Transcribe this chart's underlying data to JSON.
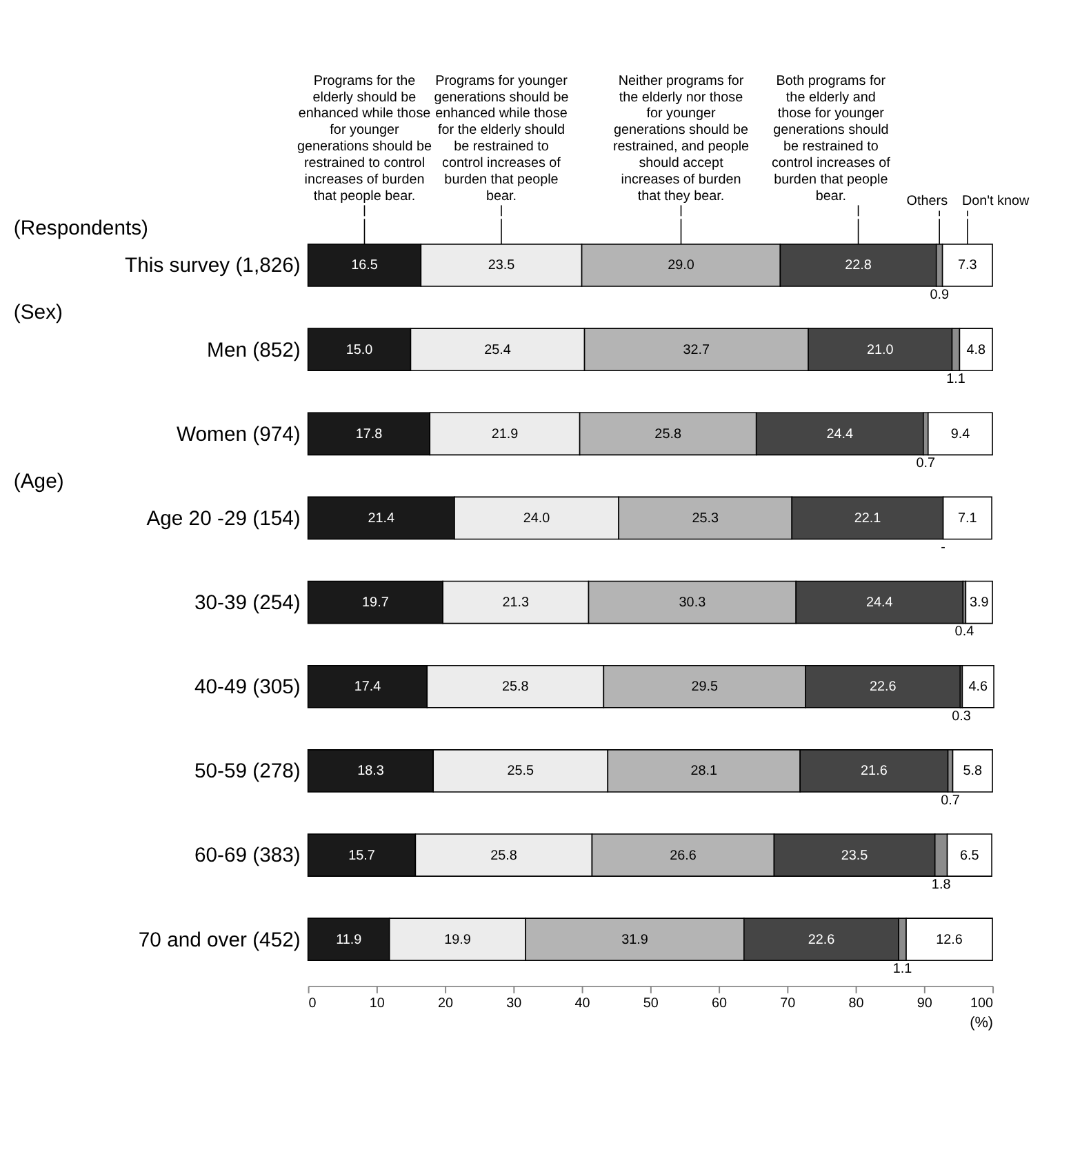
{
  "chart_data": {
    "type": "bar",
    "orientation": "horizontal",
    "stacked": true,
    "categories": [
      "This survey (1,826)",
      "Men (852)",
      "Women (974)",
      "Age 20 -29 (154)",
      "30-39 (254)",
      "40-49 (305)",
      "50-59 (278)",
      "60-69 (383)",
      "70 and over  (452)"
    ],
    "series": [
      {
        "name": "Programs for the elderly should be enhanced while those for younger generations should be restrained to control increases of burden that people bear.",
        "color": "#1a1a1a",
        "values": [
          16.5,
          15.0,
          17.8,
          21.4,
          19.7,
          17.4,
          18.3,
          15.7,
          11.9
        ],
        "value_labels": [
          "16.5",
          "15.0",
          "17.8",
          "21.4",
          "19.7",
          "17.4",
          "18.3",
          "15.7",
          "11.9"
        ]
      },
      {
        "name": "Programs for younger generations should be enhanced while those for the elderly should be restrained to control increases of burden that people bear.",
        "color": "#ececec",
        "values": [
          23.5,
          25.4,
          21.9,
          24.0,
          21.3,
          25.8,
          25.5,
          25.8,
          19.9
        ],
        "value_labels": [
          "23.5",
          "25.4",
          "21.9",
          "24.0",
          "21.3",
          "25.8",
          "25.5",
          "25.8",
          "19.9"
        ]
      },
      {
        "name": "Neither programs for the elderly nor those for younger generations should be restrained, and people should accept increases of burden that they bear.",
        "color": "#b4b4b4",
        "values": [
          29.0,
          32.7,
          25.8,
          25.3,
          30.3,
          29.5,
          28.1,
          26.6,
          31.9
        ],
        "value_labels": [
          "29.0",
          "32.7",
          "25.8",
          "25.3",
          "30.3",
          "29.5",
          "28.1",
          "26.6",
          "31.9"
        ]
      },
      {
        "name": "Both programs for the elderly and those for younger generations should be restrained to control increases of burden that people bear.",
        "color": "#454545",
        "values": [
          22.8,
          21.0,
          24.4,
          22.1,
          24.4,
          22.6,
          21.6,
          23.5,
          22.6
        ],
        "value_labels": [
          "22.8",
          "21.0",
          "24.4",
          "22.1",
          "24.4",
          "22.6",
          "21.6",
          "23.5",
          "22.6"
        ]
      },
      {
        "name": "Others",
        "color": "#8c8c8c",
        "values": [
          0.9,
          1.1,
          0.7,
          null,
          0.4,
          0.3,
          0.7,
          1.8,
          1.1
        ],
        "value_labels": [
          "0.9",
          "1.1",
          "0.7",
          "-",
          "0.4",
          "0.3",
          "0.7",
          "1.8",
          "1.1"
        ]
      },
      {
        "name": "Don't know",
        "color": "#ffffff",
        "values": [
          7.3,
          4.8,
          9.4,
          7.1,
          3.9,
          4.6,
          5.8,
          6.5,
          12.6
        ],
        "value_labels": [
          "7.3",
          "4.8",
          "9.4",
          "7.1",
          "3.9",
          "4.6",
          "5.8",
          "6.5",
          "12.6"
        ]
      }
    ],
    "xlim": [
      0,
      100
    ],
    "xticks": [
      0,
      10,
      20,
      30,
      40,
      50,
      60,
      70,
      80,
      90,
      100
    ],
    "xlabel": "(%)",
    "grid": false,
    "annotations": [
      "(Respondents)",
      "(Sex)",
      "(Age)"
    ]
  }
}
